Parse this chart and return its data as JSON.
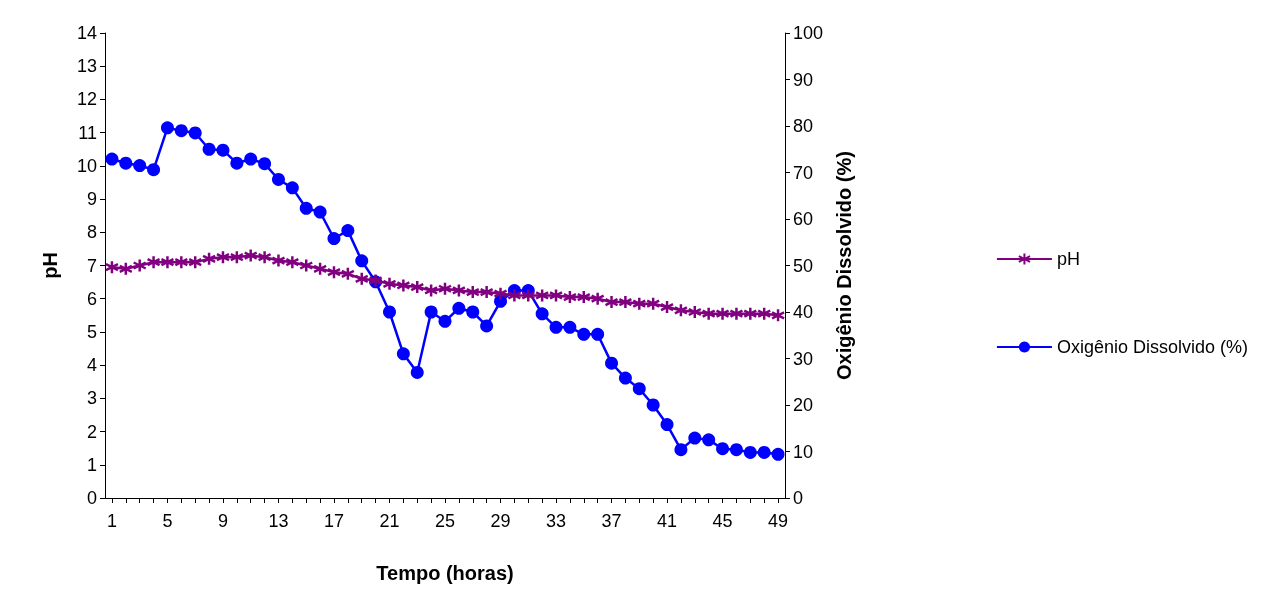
{
  "chart_data": {
    "type": "line",
    "xlabel": "Tempo (horas)",
    "ylabel": "pH",
    "y2label": "Oxigênio Dissolvido (%)",
    "categories": [
      "1",
      null,
      null,
      null,
      "5",
      null,
      null,
      null,
      "9",
      null,
      null,
      null,
      "13",
      null,
      null,
      null,
      "17",
      null,
      null,
      null,
      "21",
      null,
      null,
      null,
      "25",
      null,
      null,
      null,
      "29",
      null,
      null,
      null,
      "33",
      null,
      null,
      null,
      "37",
      null,
      null,
      null,
      "41",
      null,
      null,
      null,
      "45",
      null,
      null,
      null,
      "49"
    ],
    "ylim": [
      0,
      14
    ],
    "yticks": [
      0,
      1,
      2,
      3,
      4,
      5,
      6,
      7,
      8,
      9,
      10,
      11,
      12,
      13,
      14
    ],
    "y2lim": [
      0,
      100
    ],
    "y2ticks": [
      0,
      10,
      20,
      30,
      40,
      50,
      60,
      70,
      80,
      90,
      100
    ],
    "grid": false,
    "legend": "right",
    "line_style": "solid",
    "series": [
      {
        "name": "pH",
        "color": "#800080",
        "marker": "cross",
        "values": [
          6.95,
          6.9,
          7.0,
          7.1,
          7.1,
          7.1,
          7.1,
          7.2,
          7.25,
          7.25,
          7.3,
          7.25,
          7.15,
          7.1,
          7.0,
          6.9,
          6.8,
          6.75,
          6.6,
          6.55,
          6.45,
          6.4,
          6.35,
          6.25,
          6.3,
          6.25,
          6.2,
          6.2,
          6.15,
          6.1,
          6.1,
          6.1,
          6.1,
          6.05,
          6.05,
          6.0,
          5.9,
          5.9,
          5.85,
          5.85,
          5.75,
          5.65,
          5.6,
          5.55,
          5.55,
          5.55,
          5.55,
          5.55,
          5.5
        ]
      },
      {
        "name": "Oxigênio Dissolvido (%)",
        "color": "#0000ff",
        "marker": "circle",
        "axis": "y2",
        "values": [
          72.9,
          72,
          71.5,
          70.6,
          79.6,
          79,
          78.5,
          75,
          74.8,
          72,
          72.9,
          71.9,
          68.5,
          66.7,
          62.3,
          61.5,
          55.8,
          57.5,
          51,
          46.5,
          40,
          31,
          27,
          40,
          38,
          40.8,
          40,
          37,
          42.3,
          44.6,
          44.6,
          39.6,
          36.7,
          36.7,
          35.2,
          35.2,
          29,
          25.8,
          23.5,
          20,
          15.8,
          10.4,
          12.9,
          12.5,
          10.6,
          10.4,
          9.8,
          9.8,
          9.4
        ]
      }
    ]
  }
}
